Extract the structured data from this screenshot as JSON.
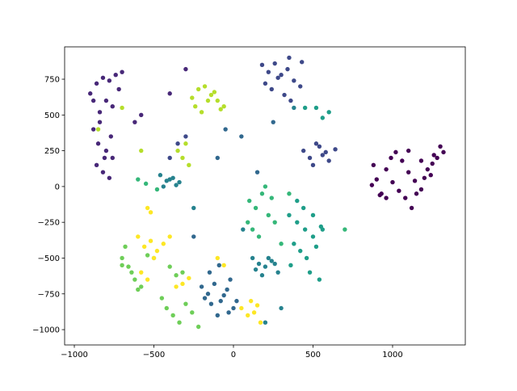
{
  "chart_data": {
    "type": "scatter",
    "xlim": [
      -1061,
      1457
    ],
    "ylim": [
      -1107,
      976
    ],
    "xticks": [
      {
        "value": -1000,
        "label": "−1000"
      },
      {
        "value": -500,
        "label": "−500"
      },
      0,
      500,
      1000
    ],
    "yticks": [
      {
        "value": -1000,
        "label": "−1000"
      },
      {
        "value": -750,
        "label": "−750"
      },
      {
        "value": -500,
        "label": "−500"
      },
      {
        "value": -250,
        "label": "−250"
      },
      0,
      250,
      500,
      750
    ],
    "series": [
      {
        "color": "#440154",
        "x": [
          880,
          900,
          930,
          960,
          990,
          1020,
          1060,
          1100,
          1140,
          1180,
          1220,
          1260,
          1300,
          1320,
          1250,
          1200,
          1150,
          1080,
          1040,
          1000,
          960,
          920,
          870,
          1120,
          1240,
          1280,
          1180,
          1100
        ],
        "values": [
          150,
          50,
          -50,
          120,
          200,
          240,
          180,
          100,
          40,
          -20,
          120,
          220,
          280,
          240,
          160,
          60,
          -50,
          -80,
          -30,
          30,
          -80,
          -60,
          10,
          -150,
          80,
          200,
          180,
          250
        ]
      },
      {
        "color": "#482878",
        "x": [
          -900,
          -860,
          -820,
          -780,
          -740,
          -700,
          -880,
          -840,
          -800,
          -760,
          -720,
          -880,
          -850,
          -810,
          -770,
          -860,
          -820,
          -780,
          -840,
          -800,
          -760,
          -620,
          -580,
          -400,
          -300
        ],
        "values": [
          650,
          720,
          760,
          740,
          780,
          800,
          600,
          520,
          600,
          560,
          680,
          400,
          300,
          200,
          350,
          150,
          100,
          60,
          450,
          250,
          200,
          450,
          500,
          650,
          820
        ]
      },
      {
        "color": "#3e4989",
        "x": [
          180,
          220,
          260,
          300,
          340,
          380,
          420,
          200,
          240,
          280,
          320,
          360,
          440,
          480,
          520,
          560,
          600,
          640,
          500,
          540,
          580,
          -350,
          -300,
          -400,
          350,
          430
        ],
        "values": [
          850,
          800,
          860,
          780,
          820,
          740,
          700,
          720,
          680,
          760,
          640,
          600,
          250,
          200,
          300,
          220,
          180,
          260,
          150,
          280,
          240,
          300,
          350,
          200,
          900,
          870
        ]
      },
      {
        "color": "#31688e",
        "x": [
          -200,
          -160,
          -120,
          -80,
          -40,
          0,
          -180,
          -140,
          -100,
          -60,
          -20,
          -150,
          -90,
          -30,
          20,
          -250,
          -100,
          50,
          150,
          250,
          -50
        ],
        "values": [
          -700,
          -750,
          -680,
          -800,
          -720,
          -850,
          -780,
          -820,
          -900,
          -760,
          -650,
          -600,
          -550,
          -880,
          -800,
          -350,
          200,
          350,
          100,
          450,
          400
        ]
      },
      {
        "color": "#26828e",
        "x": [
          -460,
          -420,
          -380,
          -340,
          -440,
          -400,
          -360,
          120,
          160,
          200,
          240,
          280,
          140,
          180,
          220,
          260,
          -250,
          60,
          300,
          200,
          380
        ],
        "values": [
          80,
          40,
          60,
          30,
          0,
          50,
          10,
          -500,
          -540,
          -560,
          -520,
          -600,
          -580,
          -620,
          -500,
          -540,
          -150,
          -300,
          -850,
          -950,
          550
        ]
      },
      {
        "color": "#1f9e89",
        "x": [
          350,
          400,
          450,
          500,
          550,
          380,
          420,
          460,
          520,
          560,
          400,
          440,
          480,
          360,
          500,
          540,
          450,
          600,
          520,
          560
        ],
        "values": [
          -200,
          -250,
          -300,
          -350,
          -280,
          -400,
          -450,
          -500,
          -420,
          -300,
          -100,
          -150,
          -600,
          -550,
          -200,
          -650,
          550,
          520,
          550,
          480
        ]
      },
      {
        "color": "#35b779",
        "x": [
          100,
          140,
          180,
          220,
          260,
          120,
          160,
          200,
          240,
          90,
          300,
          350,
          -600,
          -550,
          -480,
          700
        ],
        "values": [
          -100,
          -150,
          -50,
          -200,
          -250,
          -300,
          -350,
          0,
          -80,
          -250,
          -400,
          -50,
          50,
          20,
          -20,
          -300
        ]
      },
      {
        "color": "#6ece58",
        "x": [
          -700,
          -660,
          -620,
          -580,
          -540,
          -680,
          -640,
          -600,
          -450,
          -420,
          -380,
          -340,
          -300,
          -260,
          -220,
          -400,
          -360,
          -320,
          -700,
          -500
        ],
        "values": [
          -500,
          -560,
          -650,
          -700,
          -480,
          -420,
          -600,
          -720,
          -780,
          -850,
          -900,
          -950,
          -820,
          -880,
          -980,
          -560,
          -620,
          -600,
          -550,
          -500
        ]
      },
      {
        "color": "#b5de2b",
        "x": [
          -260,
          -220,
          -180,
          -140,
          -100,
          -60,
          -240,
          -200,
          -160,
          -120,
          -80,
          -300,
          -350,
          -320,
          -280,
          -850,
          -700,
          -580
        ],
        "values": [
          620,
          680,
          700,
          640,
          600,
          560,
          560,
          520,
          600,
          660,
          540,
          300,
          250,
          200,
          150,
          400,
          550,
          250
        ]
      },
      {
        "color": "#fde725",
        "x": [
          -600,
          -560,
          -520,
          -480,
          -440,
          -400,
          -580,
          -540,
          -500,
          -360,
          -320,
          -280,
          -520,
          -540,
          50,
          90,
          130,
          170,
          110,
          150,
          -100,
          -60
        ],
        "values": [
          -350,
          -420,
          -380,
          -450,
          -400,
          -350,
          -600,
          -650,
          -500,
          -700,
          -680,
          -640,
          -180,
          -150,
          -850,
          -900,
          -880,
          -950,
          -800,
          -830,
          -500,
          -550
        ]
      }
    ]
  }
}
